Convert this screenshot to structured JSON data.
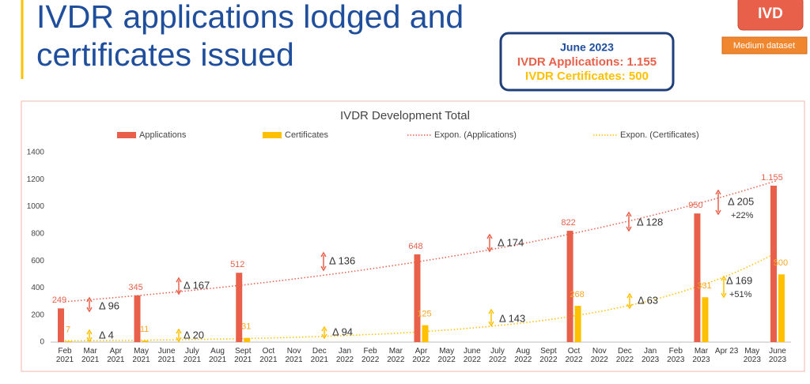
{
  "header": {
    "title": [
      "IVDR applications lodged and",
      "certificates issued"
    ],
    "summary": {
      "heading": "June 2023",
      "applications": "IVDR Applications: 1.155",
      "certificates": "IVDR Certificates: 500"
    },
    "badge": "IVD",
    "dataset": "Medium dataset"
  },
  "chart_data": {
    "type": "bar",
    "title": "IVDR Development Total",
    "categories": [
      "Feb 2021",
      "Mar 2021",
      "Apr 2021",
      "May 2021",
      "June 2021",
      "July 2021",
      "Aug 2021",
      "Sept 2021",
      "Oct 2021",
      "Nov 2021",
      "Dec 2021",
      "Jan 2022",
      "Feb 2022",
      "Mar 2022",
      "Apr 2022",
      "May 2022",
      "June 2022",
      "July 2022",
      "Aug 2022",
      "Sept 2022",
      "Oct 2022",
      "Nov 2022",
      "Dec 2022",
      "Jan 2023",
      "Feb 2023",
      "Mar 2023",
      "Apr 23",
      "May 2023",
      "June 2023"
    ],
    "series": [
      {
        "name": "Applications",
        "color": "#e8604a",
        "values": [
          249,
          null,
          null,
          345,
          null,
          null,
          null,
          512,
          null,
          null,
          null,
          null,
          null,
          null,
          648,
          null,
          null,
          null,
          null,
          null,
          822,
          null,
          null,
          null,
          null,
          950,
          null,
          null,
          1155
        ],
        "value_labels": [
          "249",
          null,
          null,
          "345",
          null,
          null,
          null,
          "512",
          null,
          null,
          null,
          null,
          null,
          null,
          "648",
          null,
          null,
          null,
          null,
          null,
          "822",
          null,
          null,
          null,
          null,
          "950",
          null,
          null,
          "1.155"
        ]
      },
      {
        "name": "Certificates",
        "color": "#ffc000",
        "values": [
          7,
          null,
          null,
          11,
          null,
          null,
          null,
          31,
          null,
          null,
          null,
          null,
          null,
          null,
          125,
          null,
          null,
          null,
          null,
          null,
          268,
          null,
          null,
          null,
          null,
          331,
          null,
          null,
          500
        ]
      }
    ],
    "trendlines": [
      {
        "name": "Expon. (Applications)",
        "series": 0
      },
      {
        "name": "Expon. (Certificates)",
        "series": 1
      }
    ],
    "annotations": [
      {
        "text": "Δ 96"
      },
      {
        "text": "Δ 4"
      },
      {
        "text": "Δ 167"
      },
      {
        "text": "Δ 20"
      },
      {
        "text": "Δ 136"
      },
      {
        "text": "Δ 94"
      },
      {
        "text": "Δ 174"
      },
      {
        "text": "Δ 143"
      },
      {
        "text": "Δ 128"
      },
      {
        "text": "Δ 63"
      },
      {
        "text": "Δ 205",
        "change": "+22%"
      },
      {
        "text": "Δ 169",
        "change": "+51%"
      }
    ],
    "ylim": [
      0,
      1400
    ],
    "yticks": [
      0,
      200,
      400,
      600,
      800,
      1000,
      1200,
      1400
    ],
    "grid": false
  }
}
